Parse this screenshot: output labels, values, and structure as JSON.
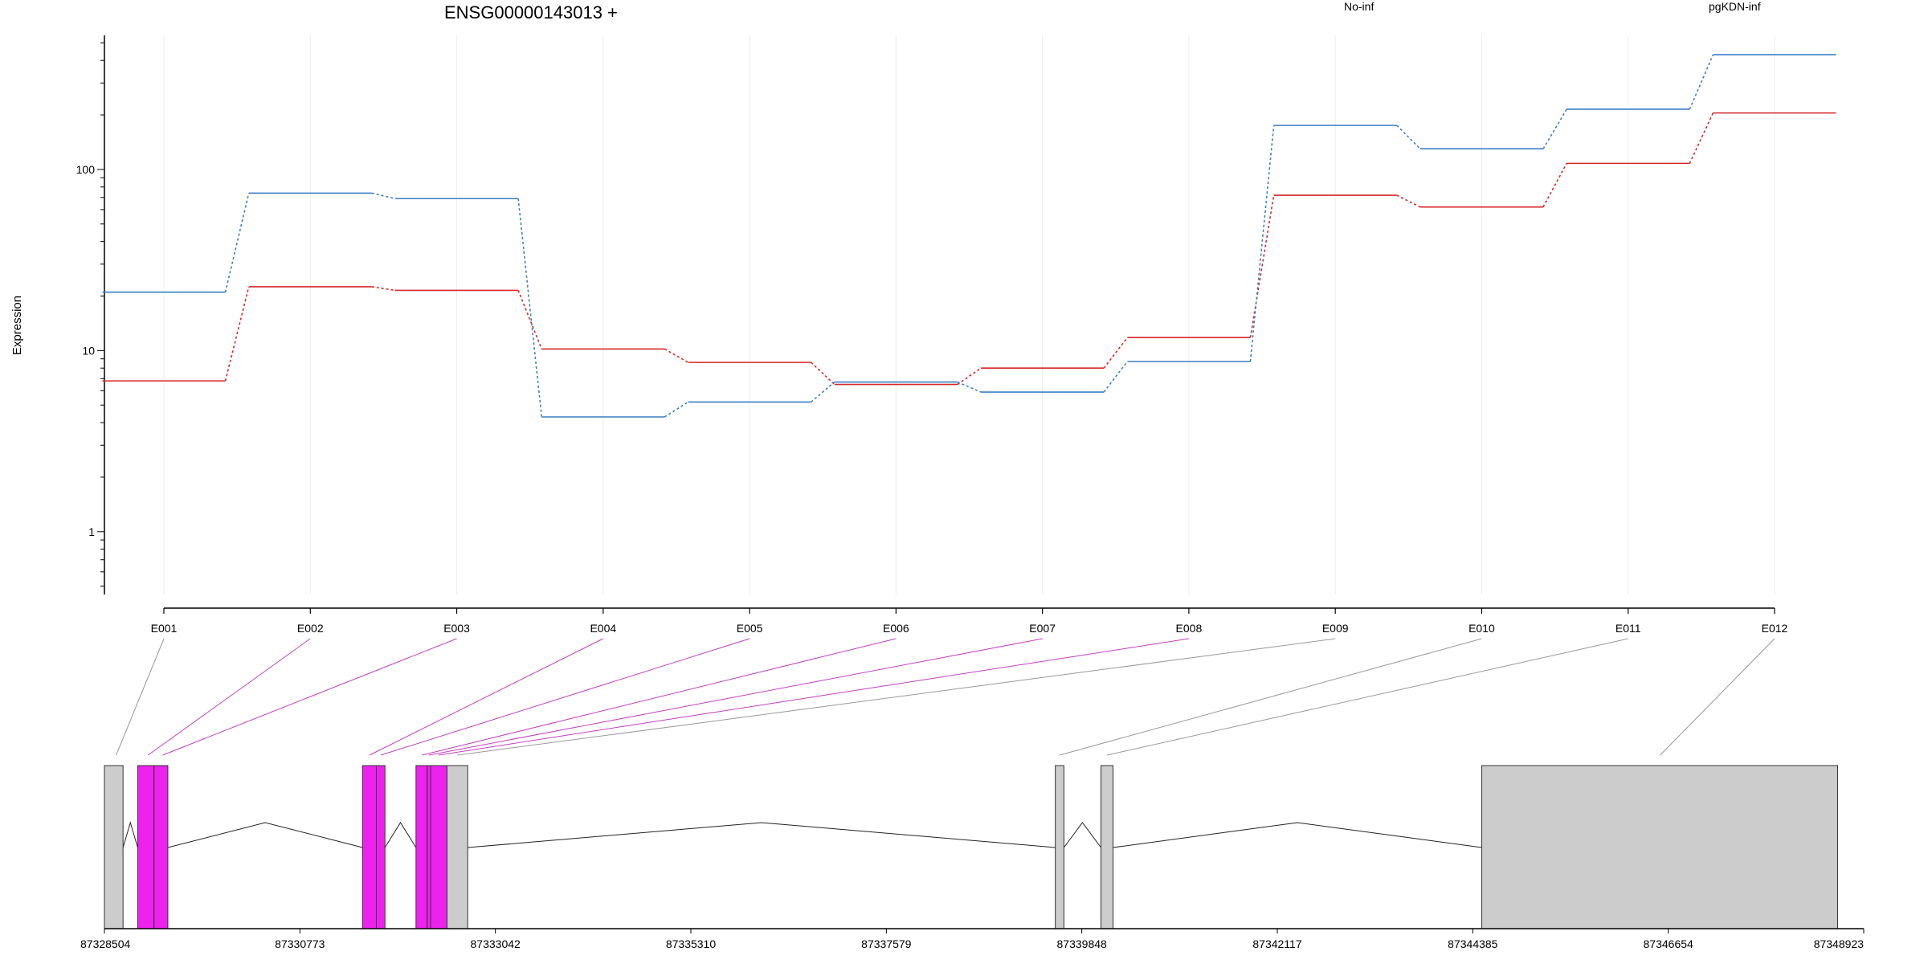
{
  "chart_data": {
    "type": "line",
    "title": "ENSG00000143013 +",
    "ylabel": "Expression",
    "xlabel": "",
    "yscale": "log",
    "ylim": [
      0.45,
      550
    ],
    "y_ticks": [
      "1",
      "10",
      "100"
    ],
    "grid": "vertical-light",
    "legend_placement": "top-right",
    "categories": [
      "E001",
      "E002",
      "E003",
      "E004",
      "E005",
      "E006",
      "E007",
      "E008",
      "E009",
      "E010",
      "E011",
      "E012"
    ],
    "series": [
      {
        "name": "No-inf",
        "color": "#d62728",
        "values": [
          6.8,
          22.5,
          21.5,
          10.2,
          8.6,
          6.5,
          8.0,
          11.8,
          72,
          62,
          108,
          205
        ]
      },
      {
        "name": "pgKDN-inf",
        "color": "#3a7fc4",
        "values": [
          21.0,
          74,
          69,
          4.3,
          5.2,
          6.7,
          5.9,
          8.7,
          175,
          130,
          215,
          430
        ]
      }
    ],
    "gene_model": {
      "x_ticks": [
        "87328504",
        "87330773",
        "87333042",
        "87335310",
        "87337579",
        "87339848",
        "87342117",
        "87344385",
        "87346654",
        "87348923"
      ],
      "range": [
        87328504,
        87348923
      ],
      "highlight_color": "#ee22ee",
      "exon_color": "#cccccc",
      "exons": [
        {
          "id": "E001",
          "start": 87328504,
          "end": 87328720,
          "highlight": false
        },
        {
          "id": "E002",
          "start": 87328890,
          "end": 87329080,
          "highlight": true
        },
        {
          "id": "E003",
          "start": 87329080,
          "end": 87329240,
          "highlight": true
        },
        {
          "id": "E004",
          "start": 87331500,
          "end": 87331660,
          "highlight": true
        },
        {
          "id": "E005",
          "start": 87331660,
          "end": 87331760,
          "highlight": true
        },
        {
          "id": "E006",
          "start": 87332120,
          "end": 87332250,
          "highlight": true
        },
        {
          "id": "E007",
          "start": 87332250,
          "end": 87332290,
          "highlight": true
        },
        {
          "id": "E008",
          "start": 87332290,
          "end": 87332480,
          "highlight": true
        },
        {
          "id": "E009",
          "start": 87332480,
          "end": 87332720,
          "highlight": false
        },
        {
          "id": "E010",
          "start": 87339540,
          "end": 87339640,
          "highlight": false
        },
        {
          "id": "E011",
          "start": 87340070,
          "end": 87340210,
          "highlight": false
        },
        {
          "id": "E012",
          "start": 87344490,
          "end": 87348620,
          "highlight": false
        }
      ],
      "connector_targets": [
        {
          "from": "E001",
          "to": 87328640,
          "highlight": false
        },
        {
          "from": "E002",
          "to": 87329010,
          "highlight": true
        },
        {
          "from": "E003",
          "to": 87329180,
          "highlight": true
        },
        {
          "from": "E004",
          "to": 87331580,
          "highlight": true
        },
        {
          "from": "E005",
          "to": 87331710,
          "highlight": true
        },
        {
          "from": "E006",
          "to": 87332190,
          "highlight": true
        },
        {
          "from": "E007",
          "to": 87332270,
          "highlight": true
        },
        {
          "from": "E008",
          "to": 87332380,
          "highlight": true
        },
        {
          "from": "E009",
          "to": 87332600,
          "highlight": false
        },
        {
          "from": "E010",
          "to": 87339590,
          "highlight": false
        },
        {
          "from": "E011",
          "to": 87340140,
          "highlight": false
        },
        {
          "from": "E012",
          "to": 87346560,
          "highlight": false
        }
      ]
    }
  }
}
